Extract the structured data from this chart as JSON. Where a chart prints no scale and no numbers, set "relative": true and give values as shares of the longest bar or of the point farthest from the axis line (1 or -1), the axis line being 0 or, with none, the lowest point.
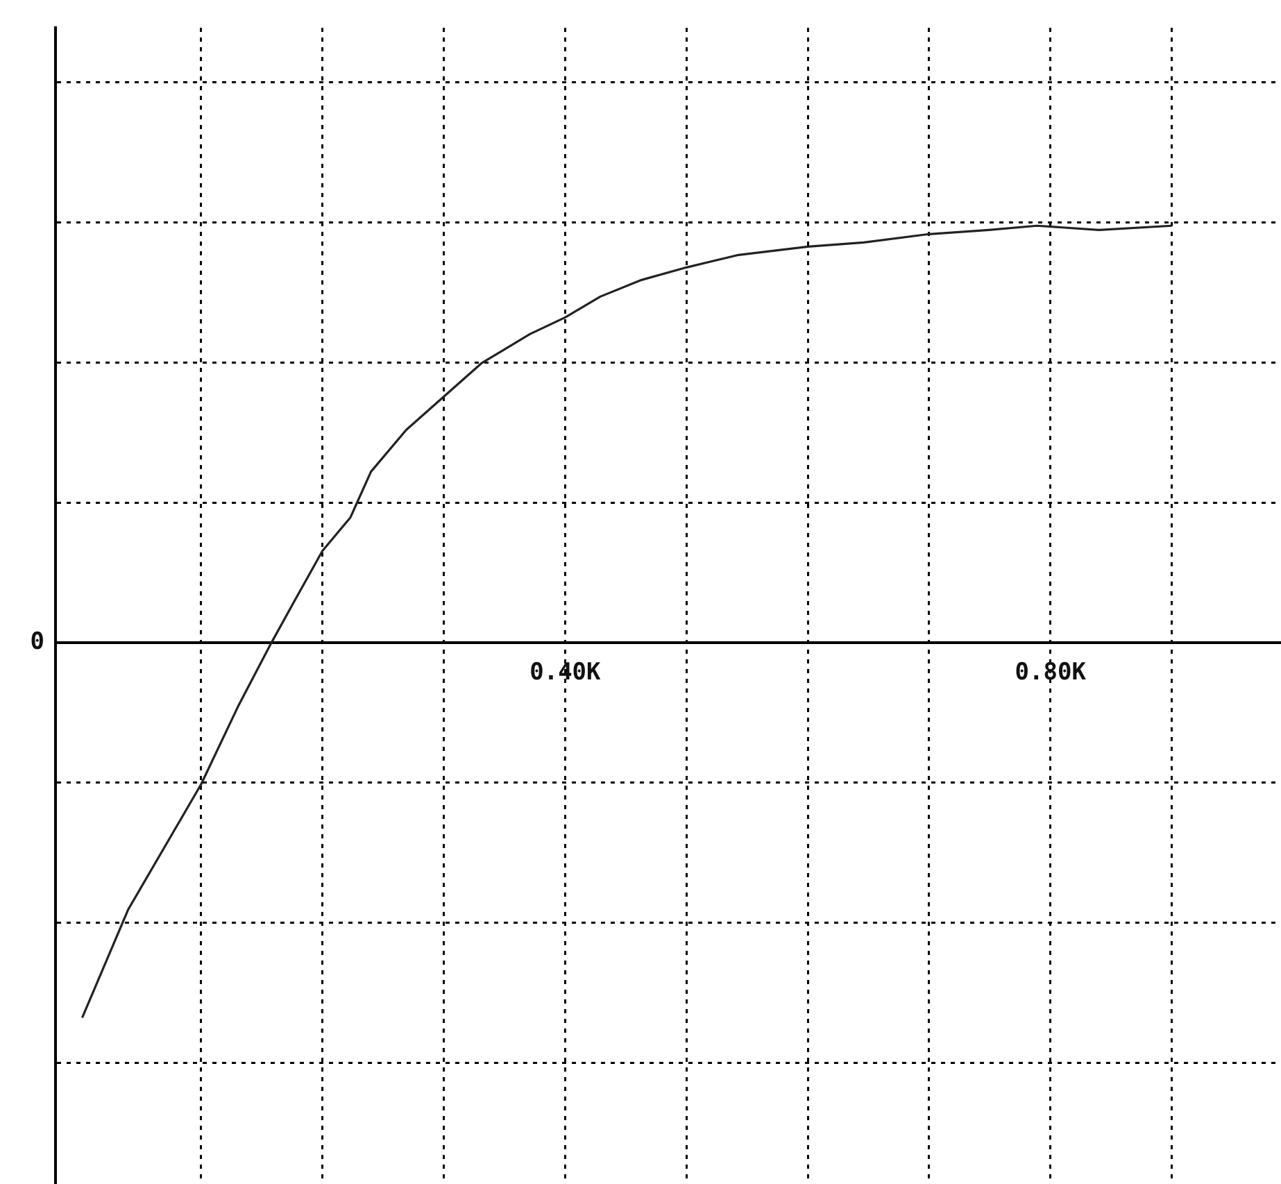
{
  "chart_data": {
    "type": "line",
    "relative": true,
    "annotations": [
      "0"
    ],
    "grid": true,
    "legend": false,
    "marker": "none",
    "line_style": "solid",
    "xlim": [
      -0.02,
      0.99
    ],
    "xticks": [
      {
        "value": 0.1,
        "label": null
      },
      {
        "value": 0.2,
        "label": null
      },
      {
        "value": 0.3,
        "label": null
      },
      {
        "value": 0.4,
        "label": "0.40K"
      },
      {
        "value": 0.5,
        "label": null
      },
      {
        "value": 0.6,
        "label": null
      },
      {
        "value": 0.7,
        "label": null
      },
      {
        "value": 0.8,
        "label": "0.80K"
      },
      {
        "value": 0.9,
        "label": null
      }
    ],
    "series": [
      {
        "color": "#222222",
        "x": [
          0.002,
          0.04,
          0.1,
          0.131,
          0.158,
          0.177,
          0.2,
          0.223,
          0.24,
          0.269,
          0.3,
          0.331,
          0.371,
          0.4,
          0.429,
          0.463,
          0.5,
          0.543,
          0.6,
          0.646,
          0.7,
          0.749,
          0.789,
          0.84,
          0.9
        ],
        "values": [
          -0.9,
          -0.64,
          -0.34,
          -0.15,
          0,
          0.1,
          0.22,
          0.3,
          0.41,
          0.51,
          0.59,
          0.67,
          0.74,
          0.78,
          0.83,
          0.87,
          0.9,
          0.93,
          0.95,
          0.96,
          0.98,
          0.99,
          1,
          0.99,
          1
        ]
      }
    ]
  }
}
